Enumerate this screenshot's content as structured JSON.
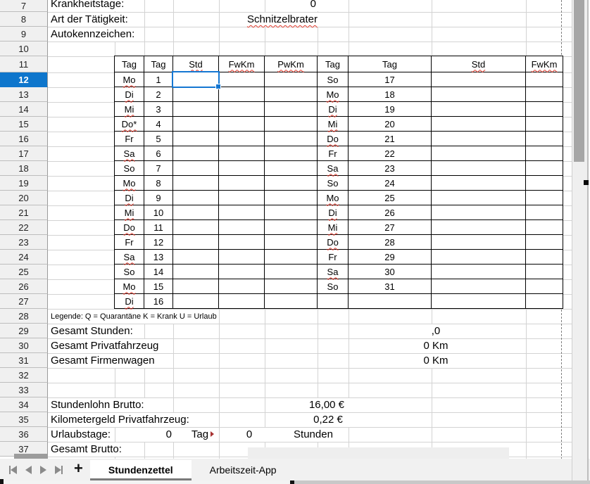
{
  "sheet": {
    "selected_row": "12",
    "row_headers": [
      "7",
      "8",
      "9",
      "10",
      "11",
      "12",
      "13",
      "14",
      "15",
      "16",
      "17",
      "18",
      "19",
      "20",
      "21",
      "22",
      "23",
      "24",
      "25",
      "26",
      "27",
      "28",
      "29",
      "30",
      "31",
      "32",
      "33",
      "34",
      "35",
      "36",
      "37"
    ],
    "cells": {
      "krankheitstage_label": "Krankheitstage:",
      "krankheitstage_value": "0",
      "taetigkeit_label": "Art der Tätigkeit:",
      "taetigkeit_value": "Schnitzelbrater",
      "autokennzeichen_label": "Autokennzeichen:",
      "legend": "Legende: Q = Quarantäne K = Krank U = Urlaub",
      "gesamt_stunden_label": "Gesamt Stunden:",
      "gesamt_stunden_value": ",0",
      "gesamt_privatfahrzeug_label": "Gesamt Privatfahrzeug",
      "gesamt_privatfahrzeug_value": "0 Km",
      "gesamt_firmenwagen_label": "Gesamt Firmenwagen",
      "gesamt_firmenwagen_value": "0 Km",
      "stundenlohn_label": "Stundenlohn Brutto:",
      "stundenlohn_value": "16,00 €",
      "kilometergeld_label": "Kilometergeld Privatfahrzeug:",
      "kilometergeld_value": "0,22 €",
      "urlaubstage_label": "Urlaubstage:",
      "urlaubstage_days_value": "0",
      "urlaubstage_days_unit": "Tag",
      "urlaubstage_hours_value": "0",
      "urlaubstage_hours_unit": "Stunden",
      "gesamt_brutto_label": "Gesamt Brutto:"
    },
    "table": {
      "headers": [
        "Tag",
        "Tag",
        "Std",
        "FwKm",
        "PwKm",
        "Tag",
        "Tag",
        "Std",
        "FwKm"
      ],
      "rows": [
        [
          "Mo",
          "1",
          "So",
          "17"
        ],
        [
          "Di",
          "2",
          "Mo",
          "18"
        ],
        [
          "Mi",
          "3",
          "Di",
          "19"
        ],
        [
          "Do*",
          "4",
          "Mi",
          "20"
        ],
        [
          "Fr",
          "5",
          "Do",
          "21"
        ],
        [
          "Sa",
          "6",
          "Fr",
          "22"
        ],
        [
          "So",
          "7",
          "Sa",
          "23"
        ],
        [
          "Mo",
          "8",
          "So",
          "24"
        ],
        [
          "Di",
          "9",
          "Mo",
          "25"
        ],
        [
          "Mi",
          "10",
          "Di",
          "26"
        ],
        [
          "Do",
          "11",
          "Mi",
          "27"
        ],
        [
          "Fr",
          "12",
          "Do",
          "28"
        ],
        [
          "Sa",
          "13",
          "Fr",
          "29"
        ],
        [
          "So",
          "14",
          "Sa",
          "30"
        ],
        [
          "Mo",
          "15",
          "So",
          "31"
        ],
        [
          "Di",
          "16",
          "",
          ""
        ]
      ]
    },
    "spellcheck_wavy": [
      "Mo",
      "Di",
      "Mi",
      "Do",
      "Do*",
      "Sa",
      "Std",
      "FwKm",
      "PwKm"
    ]
  },
  "sheet_tabs": {
    "add_label": "+",
    "tabs": [
      {
        "label": "Stundenzettel",
        "active": true
      },
      {
        "label": "Arbeitszeit-App",
        "active": false
      }
    ]
  },
  "colors": {
    "selection_blue": "#1577d2",
    "selected_row_header_bg": "#0e76cc",
    "spellcheck_red": "#e23b2e",
    "grid_line": "#d3d3d3",
    "tab_underline": "#7a7a7a"
  }
}
